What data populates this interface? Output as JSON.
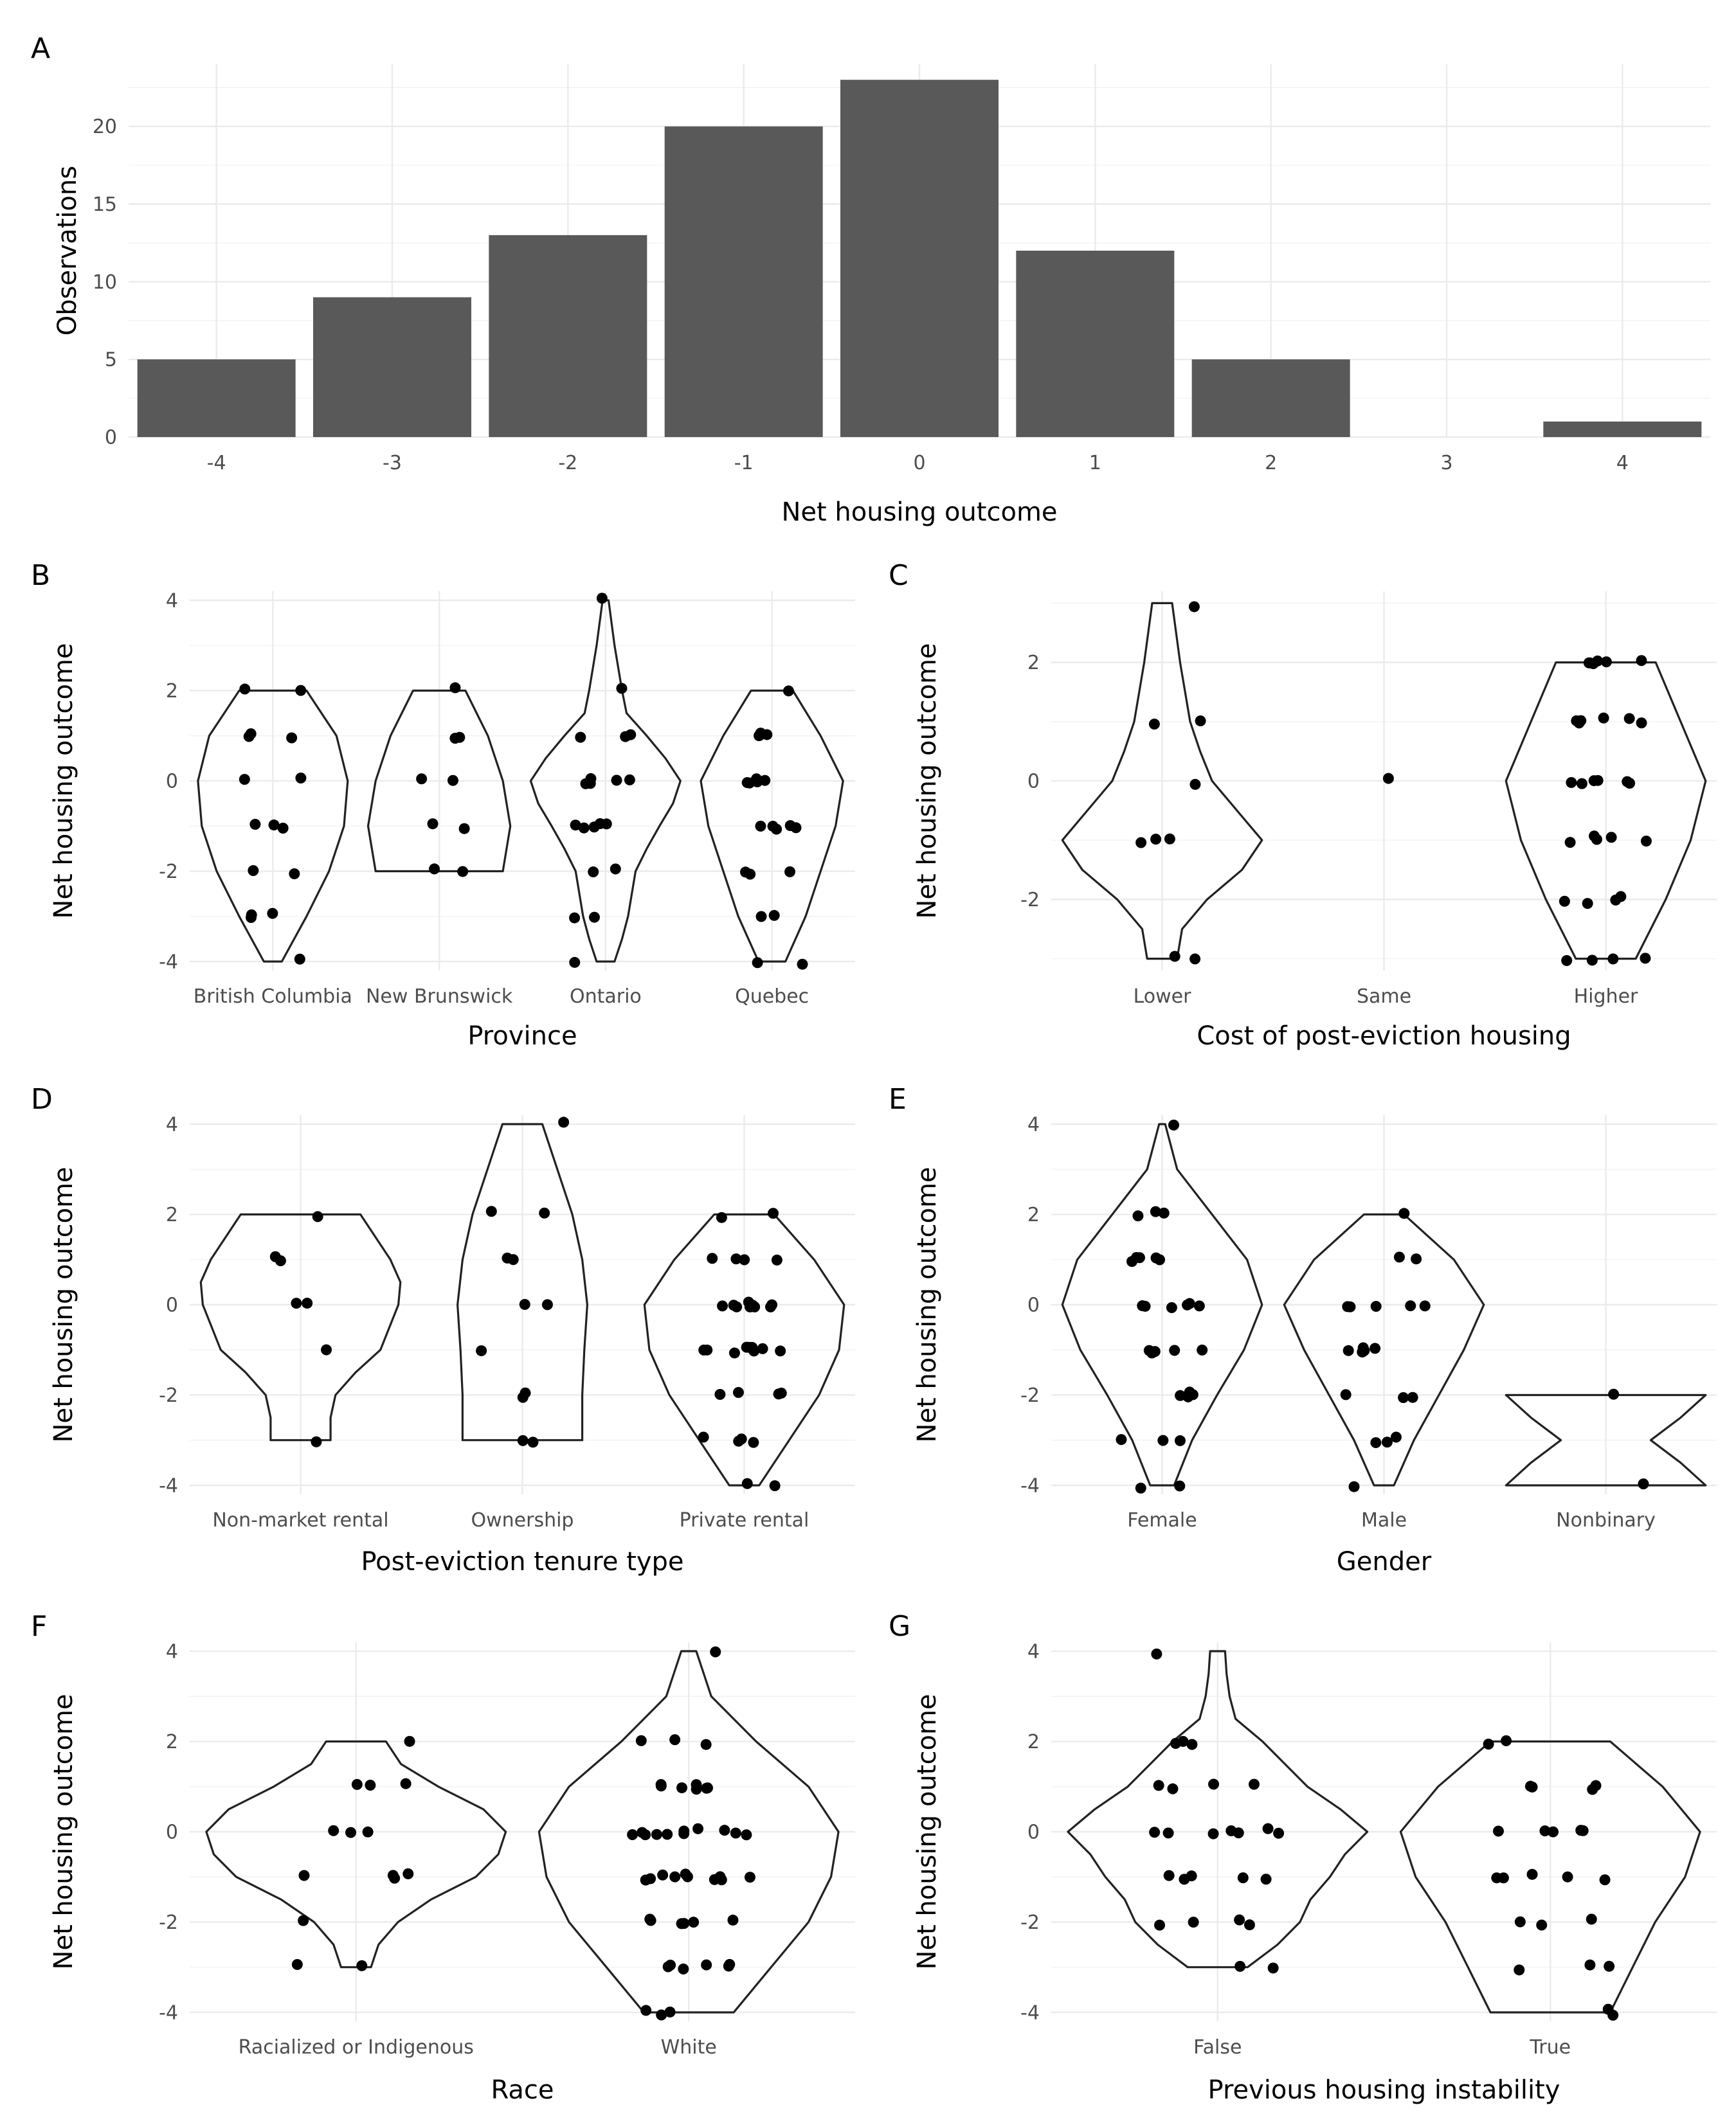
{
  "chart_data": [
    {
      "panel": "A",
      "type": "bar",
      "xlabel": "Net housing outcome",
      "ylabel": "Observations",
      "categories": [
        "-4",
        "-3",
        "-2",
        "-1",
        "0",
        "1",
        "2",
        "3",
        "4"
      ],
      "values": [
        5,
        9,
        13,
        20,
        23,
        12,
        5,
        0,
        1
      ],
      "ylim": [
        0,
        24
      ],
      "yticks": [
        0,
        5,
        10,
        15,
        20
      ],
      "grid": true
    },
    {
      "panel": "B",
      "type": "violin",
      "xlabel": "Province",
      "ylabel": "Net housing outcome",
      "ylim": [
        -4.2,
        4.2
      ],
      "yticks": [
        -4,
        -2,
        0,
        2,
        4
      ],
      "grid": true,
      "groups": [
        {
          "name": "British Columbia",
          "ymin": -4,
          "ymax": 2,
          "density": [
            [
              -4,
              0.12
            ],
            [
              -3,
              0.45
            ],
            [
              -2,
              0.75
            ],
            [
              -1,
              0.95
            ],
            [
              0,
              1.0
            ],
            [
              1,
              0.85
            ],
            [
              2,
              0.45
            ]
          ],
          "points": [
            2,
            2,
            1,
            1,
            1,
            0,
            0,
            -1,
            -1,
            -1,
            -2,
            -2,
            -3,
            -3,
            -3,
            -4
          ]
        },
        {
          "name": "New Brunswick",
          "ymin": -2,
          "ymax": 2,
          "density": [
            [
              -2,
              0.85
            ],
            [
              -1,
              0.95
            ],
            [
              0,
              0.85
            ],
            [
              1,
              0.65
            ],
            [
              2,
              0.35
            ]
          ],
          "points": [
            2,
            1,
            1,
            0,
            0,
            -1,
            -1,
            -2,
            -2
          ]
        },
        {
          "name": "Ontario",
          "ymin": -4,
          "ymax": 4,
          "density": [
            [
              -4,
              0.12
            ],
            [
              -3.5,
              0.22
            ],
            [
              -3,
              0.3
            ],
            [
              -2,
              0.4
            ],
            [
              -1.5,
              0.55
            ],
            [
              -1,
              0.72
            ],
            [
              -0.5,
              0.9
            ],
            [
              0,
              1.0
            ],
            [
              0.5,
              0.8
            ],
            [
              1,
              0.55
            ],
            [
              1.5,
              0.28
            ],
            [
              2,
              0.22
            ],
            [
              3,
              0.12
            ],
            [
              4,
              0.04
            ]
          ],
          "points": [
            4,
            2,
            1,
            1,
            1,
            0,
            0,
            0,
            0,
            0,
            -1,
            -1,
            -1,
            -1,
            -1,
            -2,
            -2,
            -3,
            -3,
            -4
          ]
        },
        {
          "name": "Quebec",
          "ymin": -4,
          "ymax": 2,
          "density": [
            [
              -4,
              0.18
            ],
            [
              -3,
              0.45
            ],
            [
              -2,
              0.65
            ],
            [
              -1,
              0.85
            ],
            [
              0,
              0.95
            ],
            [
              1,
              0.65
            ],
            [
              2,
              0.28
            ]
          ],
          "points": [
            2,
            1,
            1,
            1,
            0,
            0,
            0,
            0,
            0,
            -1,
            -1,
            -1,
            -1,
            -1,
            -2,
            -2,
            -2,
            -3,
            -3,
            -4,
            -4
          ]
        }
      ]
    },
    {
      "panel": "C",
      "type": "violin",
      "xlabel": "Cost of post-eviction housing",
      "ylabel": "Net housing outcome",
      "ylim": [
        -3.2,
        3.2
      ],
      "yticks": [
        -2,
        0,
        2
      ],
      "grid": true,
      "groups": [
        {
          "name": "Lower",
          "ymin": -3,
          "ymax": 3,
          "density": [
            [
              -3,
              0.15
            ],
            [
              -2.5,
              0.2
            ],
            [
              -2,
              0.45
            ],
            [
              -1.5,
              0.8
            ],
            [
              -1,
              1.0
            ],
            [
              -0.5,
              0.75
            ],
            [
              0,
              0.5
            ],
            [
              0.5,
              0.38
            ],
            [
              1,
              0.28
            ],
            [
              2,
              0.18
            ],
            [
              3,
              0.1
            ]
          ],
          "points": [
            3,
            1,
            1,
            0,
            -1,
            -1,
            -1,
            -3,
            -3
          ]
        },
        {
          "name": "Same",
          "ymin": 0,
          "ymax": 0,
          "density": [],
          "points": [
            0
          ]
        },
        {
          "name": "Higher",
          "ymin": -3,
          "ymax": 2,
          "density": [
            [
              -3,
              0.3
            ],
            [
              -2,
              0.6
            ],
            [
              -1,
              0.85
            ],
            [
              0,
              1.0
            ],
            [
              1,
              0.75
            ],
            [
              2,
              0.5
            ]
          ],
          "points": [
            2,
            2,
            2,
            2,
            2,
            2,
            1,
            1,
            1,
            1,
            1,
            1,
            0,
            0,
            0,
            0,
            0,
            0,
            -1,
            -1,
            -1,
            -1,
            -1,
            -2,
            -2,
            -2,
            -2,
            -3,
            -3,
            -3,
            -3
          ]
        }
      ]
    },
    {
      "panel": "D",
      "type": "violin",
      "xlabel": "Post-eviction tenure type",
      "ylabel": "Net housing outcome",
      "ylim": [
        -4.2,
        4.2
      ],
      "yticks": [
        -4,
        -2,
        0,
        2,
        4
      ],
      "grid": true,
      "groups": [
        {
          "name": "Non-market rental",
          "ymin": -3,
          "ymax": 2,
          "density": [
            [
              -3,
              0.3
            ],
            [
              -2.5,
              0.3
            ],
            [
              -2,
              0.35
            ],
            [
              -1.5,
              0.55
            ],
            [
              -1,
              0.8
            ],
            [
              0,
              0.98
            ],
            [
              0.5,
              1.0
            ],
            [
              1,
              0.9
            ],
            [
              1.5,
              0.75
            ],
            [
              2,
              0.6
            ]
          ],
          "points": [
            2,
            1,
            1,
            0,
            0,
            -1,
            -3
          ]
        },
        {
          "name": "Ownership",
          "ymin": -3,
          "ymax": 4,
          "density": [
            [
              -3,
              0.6
            ],
            [
              -2,
              0.6
            ],
            [
              -1,
              0.62
            ],
            [
              0,
              0.65
            ],
            [
              1,
              0.6
            ],
            [
              2,
              0.5
            ],
            [
              3,
              0.35
            ],
            [
              4,
              0.2
            ]
          ],
          "points": [
            4,
            2,
            2,
            1,
            1,
            0,
            0,
            -1,
            -2,
            -2,
            -3,
            -3
          ]
        },
        {
          "name": "Private rental",
          "ymin": -4,
          "ymax": 2,
          "density": [
            [
              -4,
              0.15
            ],
            [
              -3,
              0.45
            ],
            [
              -2,
              0.75
            ],
            [
              -1,
              0.95
            ],
            [
              0,
              1.0
            ],
            [
              1,
              0.7
            ],
            [
              2,
              0.3
            ]
          ],
          "points": [
            2,
            2,
            1,
            1,
            1,
            1,
            0,
            0,
            0,
            0,
            0,
            0,
            0,
            0,
            0,
            -1,
            -1,
            -1,
            -1,
            -1,
            -1,
            -1,
            -1,
            -1,
            -2,
            -2,
            -2,
            -2,
            -3,
            -3,
            -3,
            -3,
            -4,
            -4
          ]
        }
      ]
    },
    {
      "panel": "E",
      "type": "violin",
      "xlabel": "Gender",
      "ylabel": "Net housing outcome",
      "ylim": [
        -4.2,
        4.2
      ],
      "yticks": [
        -4,
        -2,
        0,
        2,
        4
      ],
      "grid": true,
      "groups": [
        {
          "name": "Female",
          "ymin": -4,
          "ymax": 4,
          "density": [
            [
              -4,
              0.12
            ],
            [
              -3,
              0.3
            ],
            [
              -2,
              0.55
            ],
            [
              -1,
              0.82
            ],
            [
              0,
              1.0
            ],
            [
              1,
              0.85
            ],
            [
              2,
              0.5
            ],
            [
              3,
              0.15
            ],
            [
              4,
              0.03
            ]
          ],
          "points": [
            4,
            2,
            2,
            2,
            1,
            1,
            1,
            1,
            1,
            0,
            0,
            0,
            0,
            0,
            0,
            -1,
            -1,
            -1,
            -1,
            -1,
            -2,
            -2,
            -2,
            -2,
            -3,
            -3,
            -3,
            -4,
            -4
          ]
        },
        {
          "name": "Male",
          "ymin": -4,
          "ymax": 2,
          "density": [
            [
              -4,
              0.1
            ],
            [
              -3,
              0.3
            ],
            [
              -2,
              0.55
            ],
            [
              -1,
              0.8
            ],
            [
              0,
              1.0
            ],
            [
              1,
              0.7
            ],
            [
              2,
              0.2
            ]
          ],
          "points": [
            2,
            1,
            1,
            0,
            0,
            0,
            0,
            0,
            -1,
            -1,
            -1,
            -1,
            -1,
            -2,
            -2,
            -2,
            -3,
            -3,
            -3,
            -4
          ]
        },
        {
          "name": "Nonbinary",
          "ymin": -4,
          "ymax": -2,
          "density": [
            [
              -4,
              1.0
            ],
            [
              -3.5,
              0.75
            ],
            [
              -3,
              0.45
            ],
            [
              -2.5,
              0.75
            ],
            [
              -2,
              1.0
            ]
          ],
          "points": [
            -2,
            -4
          ]
        }
      ]
    },
    {
      "panel": "F",
      "type": "violin",
      "xlabel": "Race",
      "ylabel": "Net housing outcome",
      "ylim": [
        -4.2,
        4.2
      ],
      "yticks": [
        -4,
        -2,
        0,
        2,
        4
      ],
      "grid": true,
      "groups": [
        {
          "name": "Racialized or Indigenous",
          "ymin": -3,
          "ymax": 2,
          "density": [
            [
              -3,
              0.1
            ],
            [
              -2.5,
              0.15
            ],
            [
              -2,
              0.28
            ],
            [
              -1.5,
              0.5
            ],
            [
              -1,
              0.8
            ],
            [
              -0.5,
              0.95
            ],
            [
              0,
              1.0
            ],
            [
              0.5,
              0.85
            ],
            [
              1,
              0.55
            ],
            [
              1.5,
              0.3
            ],
            [
              2,
              0.2
            ]
          ],
          "points": [
            2,
            1,
            1,
            1,
            0,
            0,
            0,
            -1,
            -1,
            -1,
            -1,
            -2,
            -3,
            -3
          ]
        },
        {
          "name": "White",
          "ymin": -4,
          "ymax": 4,
          "density": [
            [
              -4,
              0.3
            ],
            [
              -3,
              0.55
            ],
            [
              -2,
              0.8
            ],
            [
              -1,
              0.95
            ],
            [
              0,
              1.0
            ],
            [
              1,
              0.8
            ],
            [
              2,
              0.45
            ],
            [
              3,
              0.15
            ],
            [
              4,
              0.05
            ]
          ],
          "points": [
            4,
            2,
            2,
            2,
            1,
            1,
            1,
            1,
            1,
            1,
            1,
            0,
            0,
            0,
            0,
            0,
            0,
            0,
            0,
            0,
            0,
            0,
            -1,
            -1,
            -1,
            -1,
            -1,
            -1,
            -1,
            -1,
            -1,
            -1,
            -2,
            -2,
            -2,
            -2,
            -2,
            -2,
            -3,
            -3,
            -3,
            -3,
            -3,
            -3,
            -4,
            -4,
            -4
          ]
        }
      ]
    },
    {
      "panel": "G",
      "type": "violin",
      "xlabel": "Previous housing instability",
      "ylabel": "Net housing outcome",
      "ylim": [
        -4.2,
        4.2
      ],
      "yticks": [
        -4,
        -2,
        0,
        2,
        4
      ],
      "grid": true,
      "groups": [
        {
          "name": "False",
          "ymin": -3,
          "ymax": 4,
          "density": [
            [
              -3,
              0.2
            ],
            [
              -2.5,
              0.4
            ],
            [
              -2,
              0.55
            ],
            [
              -1.5,
              0.62
            ],
            [
              -1,
              0.75
            ],
            [
              -0.5,
              0.85
            ],
            [
              0,
              1.0
            ],
            [
              0.5,
              0.82
            ],
            [
              1,
              0.6
            ],
            [
              1.5,
              0.45
            ],
            [
              2,
              0.3
            ],
            [
              2.5,
              0.12
            ],
            [
              3,
              0.08
            ],
            [
              3.5,
              0.06
            ],
            [
              4,
              0.05
            ]
          ],
          "points": [
            4,
            2,
            2,
            2,
            1,
            1,
            1,
            1,
            0,
            0,
            0,
            0,
            0,
            0,
            0,
            -1,
            -1,
            -1,
            -1,
            -1,
            -2,
            -2,
            -2,
            -2,
            -3,
            -3
          ]
        },
        {
          "name": "True",
          "ymin": -4,
          "ymax": 2,
          "density": [
            [
              -4,
              0.4
            ],
            [
              -3,
              0.55
            ],
            [
              -2,
              0.7
            ],
            [
              -1,
              0.9
            ],
            [
              0,
              1.0
            ],
            [
              1,
              0.75
            ],
            [
              2,
              0.4
            ]
          ],
          "points": [
            2,
            2,
            1,
            1,
            1,
            1,
            0,
            0,
            0,
            0,
            0,
            -1,
            -1,
            -1,
            -1,
            -1,
            -2,
            -2,
            -2,
            -3,
            -3,
            -3,
            -4,
            -4
          ]
        }
      ]
    }
  ]
}
